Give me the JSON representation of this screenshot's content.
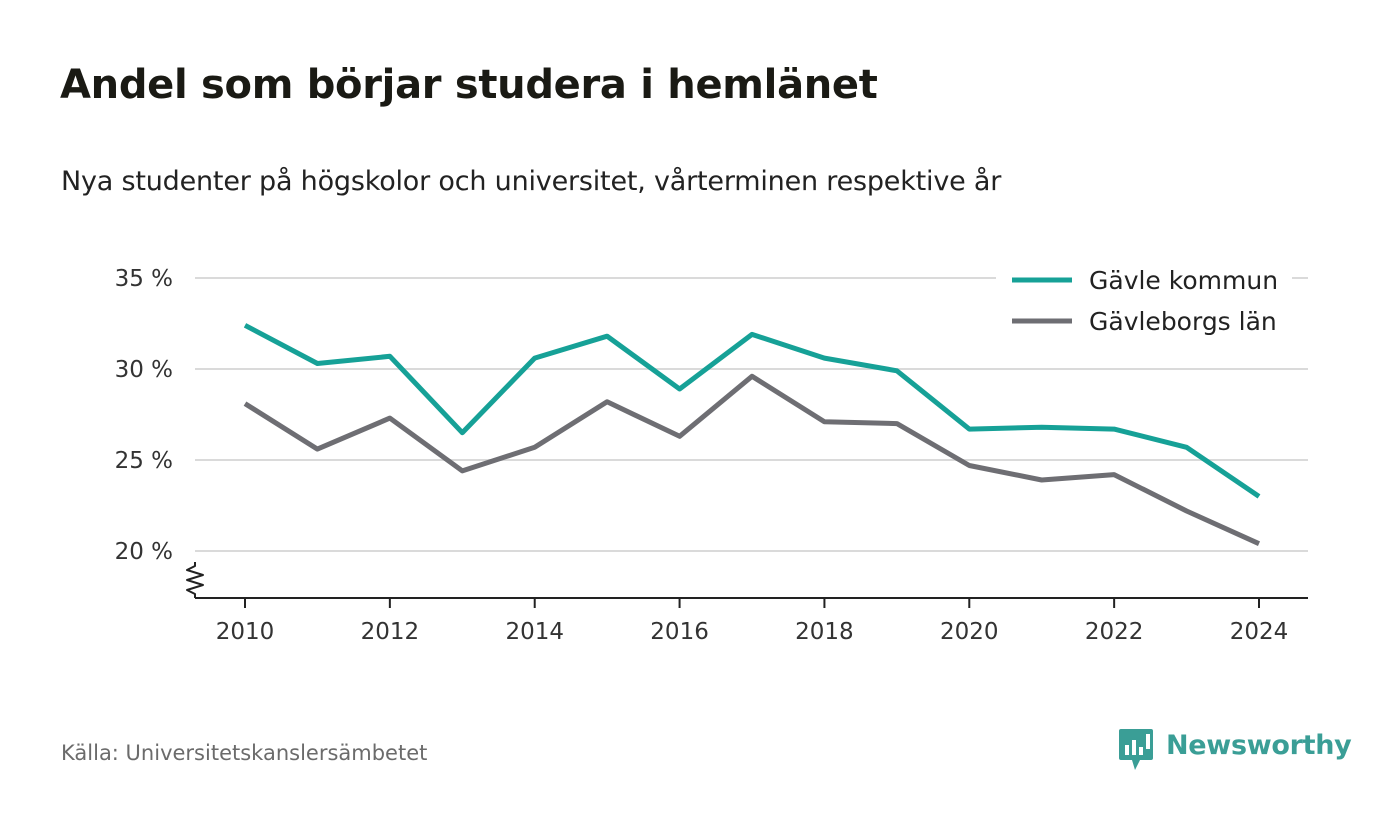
{
  "header": {
    "title": "Andel som börjar studera i hemlänet",
    "subtitle": "Nya studenter på högskolor och universitet, vårterminen respektive år"
  },
  "footer": {
    "source": "Källa: Universitetskanslersämbetet",
    "brand": "Newsworthy"
  },
  "colors": {
    "series_1": "#16a197",
    "series_2": "#6e6e73",
    "grid": "#dadada",
    "brand": "#3a9e96"
  },
  "chart_data": {
    "type": "line",
    "title": "Andel som börjar studera i hemlänet",
    "subtitle": "Nya studenter på högskolor och universitet, vårterminen respektive år",
    "x": [
      2010,
      2011,
      2012,
      2013,
      2014,
      2015,
      2016,
      2017,
      2018,
      2019,
      2020,
      2021,
      2022,
      2023,
      2024
    ],
    "x_ticks": [
      "2010",
      "2012",
      "2014",
      "2016",
      "2018",
      "2020",
      "2022",
      "2024"
    ],
    "y_ticks": [
      "20 %",
      "25 %",
      "30 %",
      "35 %"
    ],
    "y_tick_values": [
      20,
      25,
      30,
      35
    ],
    "ylim": [
      17.5,
      35
    ],
    "y_axis_break": true,
    "grid": true,
    "legend_position": "top-right",
    "series": [
      {
        "name": "Gävle kommun",
        "color": "#16a197",
        "values": [
          32.4,
          30.3,
          30.7,
          26.5,
          30.6,
          31.8,
          28.9,
          31.9,
          30.6,
          29.9,
          26.7,
          26.8,
          26.7,
          25.7,
          23.0
        ]
      },
      {
        "name": "Gävleborgs län",
        "color": "#6e6e73",
        "values": [
          28.1,
          25.6,
          27.3,
          24.4,
          25.7,
          28.2,
          26.3,
          29.6,
          27.1,
          27.0,
          24.7,
          23.9,
          24.2,
          22.2,
          20.4
        ]
      }
    ]
  }
}
